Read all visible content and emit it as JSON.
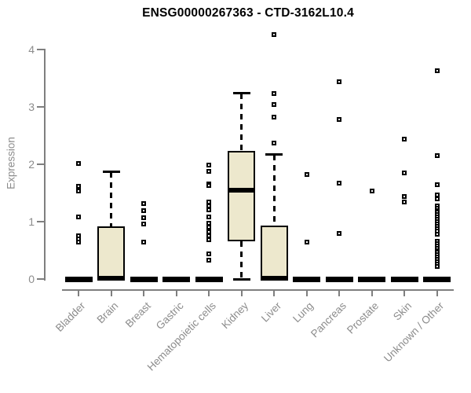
{
  "chart": {
    "title": "ENSG00000267363 - CTD-3162L10.4",
    "ylabel": "Expression"
  },
  "chart_data": {
    "type": "boxplot",
    "title": "ENSG00000267363 - CTD-3162L10.4",
    "xlabel": "",
    "ylabel": "Expression",
    "ylim": [
      0,
      4.35
    ],
    "y_ticks": [
      0,
      1,
      2,
      3,
      4
    ],
    "grid": false,
    "legend": false,
    "box_fill_color": "#EDE8CD",
    "box_stroke_color": "#000000",
    "axis_color": "#7f7f7f",
    "tick_label_color": "#8c8c8c",
    "categories": [
      "Bladder",
      "Brain",
      "Breast",
      "Gastric",
      "Hematopoietic cells",
      "Kidney",
      "Liver",
      "Lung",
      "Pancreas",
      "Prostate",
      "Skin",
      "Unknown / Other"
    ],
    "series": [
      {
        "category": "Bladder",
        "min": 0,
        "q1": 0,
        "median": 0,
        "q3": 0,
        "max": 0,
        "outliers": [
          2.02,
          1.62,
          1.53,
          1.08,
          0.76,
          0.7,
          0.64
        ]
      },
      {
        "category": "Brain",
        "min": 0,
        "q1": 0,
        "median": 0.02,
        "q3": 0.92,
        "max": 1.87,
        "outliers": []
      },
      {
        "category": "Breast",
        "min": 0,
        "q1": 0,
        "median": 0,
        "q3": 0,
        "max": 0,
        "outliers": [
          1.32,
          1.19,
          1.07,
          0.96,
          0.64
        ]
      },
      {
        "category": "Gastric",
        "min": 0,
        "q1": 0,
        "median": 0,
        "q3": 0,
        "max": 0,
        "outliers": []
      },
      {
        "category": "Hematopoietic cells",
        "min": 0,
        "q1": 0,
        "median": 0,
        "q3": 0,
        "max": 0,
        "outliers": [
          1.99,
          1.88,
          1.66,
          1.63,
          1.34,
          1.27,
          1.21,
          1.08,
          0.98,
          0.91,
          0.82,
          0.75,
          0.68,
          0.44,
          0.33
        ]
      },
      {
        "category": "Kidney",
        "min": 0,
        "q1": 0.66,
        "median": 1.55,
        "q3": 2.24,
        "max": 3.24,
        "outliers": []
      },
      {
        "category": "Liver",
        "min": 0,
        "q1": 0,
        "median": 0.02,
        "q3": 0.93,
        "max": 2.17,
        "outliers": [
          4.27,
          3.24,
          3.05,
          2.83,
          2.37
        ]
      },
      {
        "category": "Lung",
        "min": 0,
        "q1": 0,
        "median": 0,
        "q3": 0,
        "max": 0,
        "outliers": [
          1.82,
          0.64
        ]
      },
      {
        "category": "Pancreas",
        "min": 0,
        "q1": 0,
        "median": 0,
        "q3": 0,
        "max": 0,
        "outliers": [
          3.44,
          2.79,
          1.68,
          0.79
        ]
      },
      {
        "category": "Prostate",
        "min": 0,
        "q1": 0,
        "median": 0,
        "q3": 0,
        "max": 0,
        "outliers": [
          1.53
        ]
      },
      {
        "category": "Skin",
        "min": 0,
        "q1": 0,
        "median": 0,
        "q3": 0,
        "max": 0,
        "outliers": [
          2.44,
          1.85,
          1.44,
          1.35
        ]
      },
      {
        "category": "Unknown / Other",
        "min": 0,
        "q1": 0,
        "median": 0,
        "q3": 0,
        "max": 0,
        "outliers": [
          3.63,
          2.15,
          1.65,
          1.47,
          1.4,
          1.28,
          1.24,
          1.2,
          1.16,
          1.12,
          1.08,
          1.04,
          1.0,
          0.96,
          0.92,
          0.88,
          0.84,
          0.78,
          0.66,
          0.62,
          0.58,
          0.54,
          0.5,
          0.46,
          0.42,
          0.38,
          0.34,
          0.3,
          0.26,
          0.22
        ]
      }
    ]
  }
}
